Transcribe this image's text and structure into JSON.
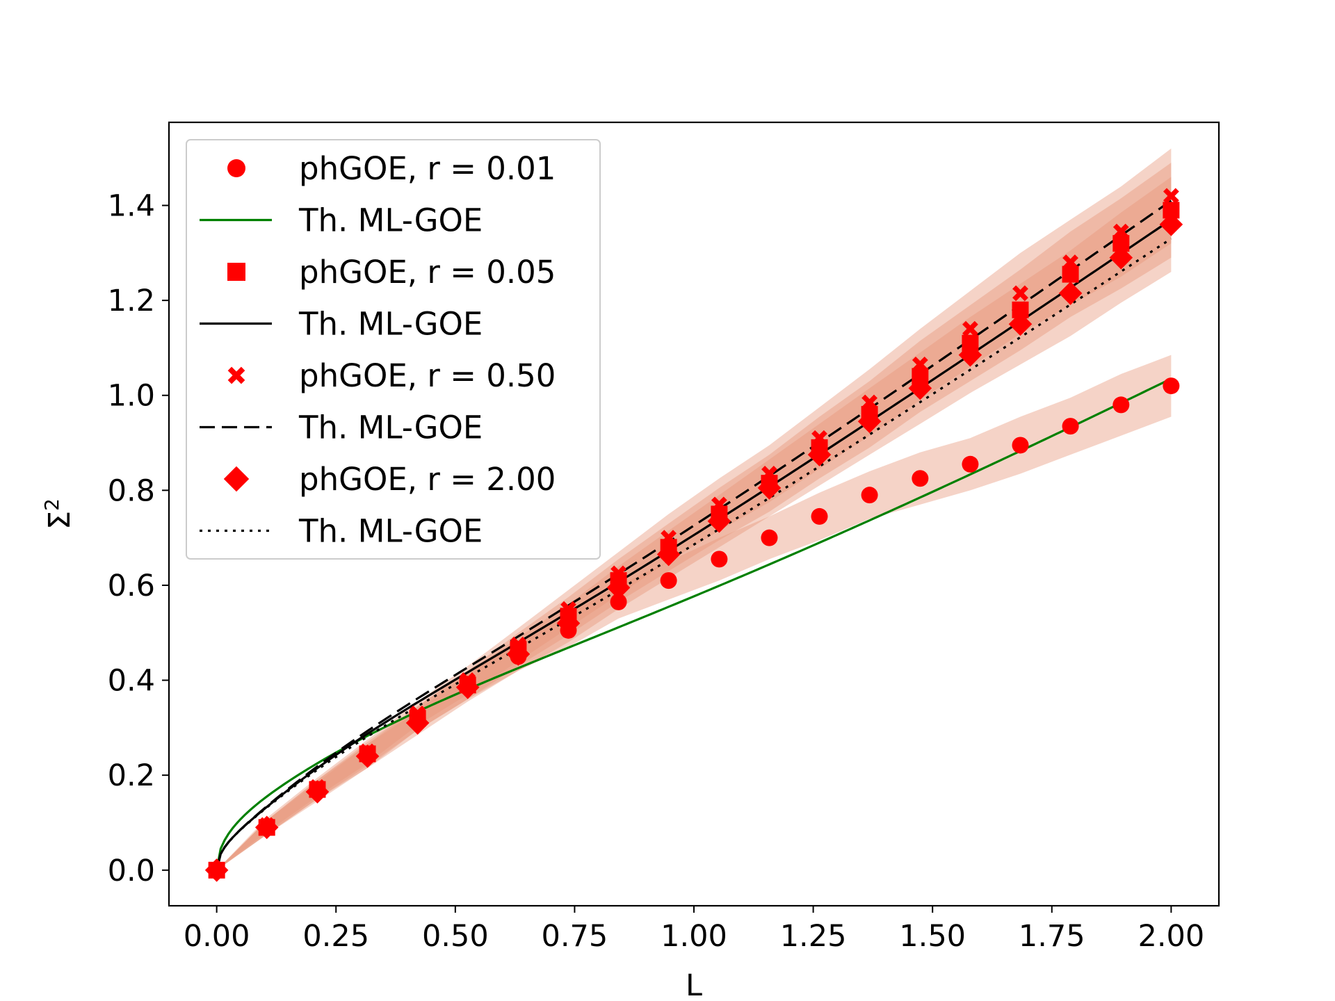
{
  "chart_data": {
    "type": "scatter",
    "title": "",
    "xlabel": "L",
    "ylabel": "Σ",
    "ylabel_superscript": "2",
    "xlim": [
      -0.1,
      2.1
    ],
    "ylim": [
      -0.075,
      1.575
    ],
    "xticks": [
      0.0,
      0.25,
      0.5,
      0.75,
      1.0,
      1.25,
      1.5,
      1.75,
      2.0
    ],
    "xtick_labels": [
      "0.00",
      "0.25",
      "0.50",
      "0.75",
      "1.00",
      "1.25",
      "1.50",
      "1.75",
      "2.00"
    ],
    "yticks": [
      0.0,
      0.2,
      0.4,
      0.6,
      0.8,
      1.0,
      1.2,
      1.4
    ],
    "ytick_labels": [
      "0.0",
      "0.2",
      "0.4",
      "0.6",
      "0.8",
      "1.0",
      "1.2",
      "1.4"
    ],
    "grid": false,
    "legend_position": "upper-left",
    "x": [
      0.0,
      0.105,
      0.211,
      0.316,
      0.421,
      0.526,
      0.632,
      0.737,
      0.842,
      0.947,
      1.053,
      1.158,
      1.263,
      1.368,
      1.474,
      1.579,
      1.684,
      1.789,
      1.895,
      2.0
    ],
    "series": [
      {
        "name": "phGOE, r = 0.01",
        "marker": "circle",
        "color": "#ff0000",
        "values": [
          0.0,
          0.09,
          0.17,
          0.24,
          0.32,
          0.39,
          0.45,
          0.505,
          0.565,
          0.61,
          0.655,
          0.7,
          0.745,
          0.79,
          0.825,
          0.855,
          0.895,
          0.935,
          0.98,
          1.02
        ],
        "band": [
          0.0,
          0.015,
          0.02,
          0.025,
          0.025,
          0.03,
          0.03,
          0.035,
          0.035,
          0.04,
          0.045,
          0.045,
          0.05,
          0.05,
          0.055,
          0.055,
          0.06,
          0.06,
          0.065,
          0.065
        ]
      },
      {
        "name": "phGOE, r = 0.05",
        "marker": "square",
        "color": "#ff0000",
        "values": [
          0.0,
          0.09,
          0.17,
          0.245,
          0.32,
          0.39,
          0.465,
          0.535,
          0.61,
          0.68,
          0.75,
          0.815,
          0.89,
          0.96,
          1.04,
          1.11,
          1.18,
          1.255,
          1.32,
          1.39
        ],
        "band": [
          0.0,
          0.015,
          0.02,
          0.025,
          0.025,
          0.03,
          0.035,
          0.04,
          0.045,
          0.05,
          0.055,
          0.06,
          0.065,
          0.07,
          0.075,
          0.08,
          0.085,
          0.09,
          0.095,
          0.1
        ]
      },
      {
        "name": "phGOE, r = 0.50",
        "marker": "x",
        "color": "#ff0000",
        "values": [
          0.0,
          0.095,
          0.175,
          0.25,
          0.33,
          0.4,
          0.475,
          0.55,
          0.625,
          0.7,
          0.77,
          0.835,
          0.91,
          0.985,
          1.065,
          1.14,
          1.215,
          1.28,
          1.345,
          1.42
        ],
        "band": [
          0.0,
          0.015,
          0.02,
          0.025,
          0.025,
          0.03,
          0.035,
          0.04,
          0.045,
          0.05,
          0.055,
          0.06,
          0.065,
          0.07,
          0.075,
          0.08,
          0.085,
          0.09,
          0.095,
          0.1
        ]
      },
      {
        "name": "phGOE, r = 2.00",
        "marker": "diamond",
        "color": "#ff0000",
        "values": [
          0.0,
          0.09,
          0.165,
          0.24,
          0.31,
          0.385,
          0.455,
          0.52,
          0.595,
          0.665,
          0.735,
          0.805,
          0.875,
          0.945,
          1.015,
          1.085,
          1.15,
          1.215,
          1.29,
          1.36
        ],
        "band": [
          0.0,
          0.015,
          0.02,
          0.025,
          0.025,
          0.03,
          0.035,
          0.04,
          0.045,
          0.05,
          0.055,
          0.06,
          0.065,
          0.07,
          0.075,
          0.08,
          0.085,
          0.09,
          0.095,
          0.1
        ]
      }
    ],
    "band_color": "#e8967a",
    "theory_curves": [
      {
        "name": "Th. ML-GOE",
        "style": "solid",
        "color": "#008000",
        "pairs_with": "phGOE, r = 0.01",
        "end_value": 1.035
      },
      {
        "name": "Th. ML-GOE",
        "style": "solid",
        "color": "#000000",
        "pairs_with": "phGOE, r = 0.05",
        "end_value": 1.37
      },
      {
        "name": "Th. ML-GOE",
        "style": "dashed",
        "color": "#000000",
        "pairs_with": "phGOE, r = 0.50",
        "end_value": 1.41
      },
      {
        "name": "Th. ML-GOE",
        "style": "dotted",
        "color": "#000000",
        "pairs_with": "phGOE, r = 2.00",
        "end_value": 1.33
      }
    ],
    "legend": [
      "phGOE, r = 0.01",
      "Th. ML-GOE",
      "phGOE, r = 0.05",
      "Th. ML-GOE",
      "phGOE, r = 0.50",
      "Th. ML-GOE",
      "phGOE, r = 2.00",
      "Th. ML-GOE"
    ]
  }
}
